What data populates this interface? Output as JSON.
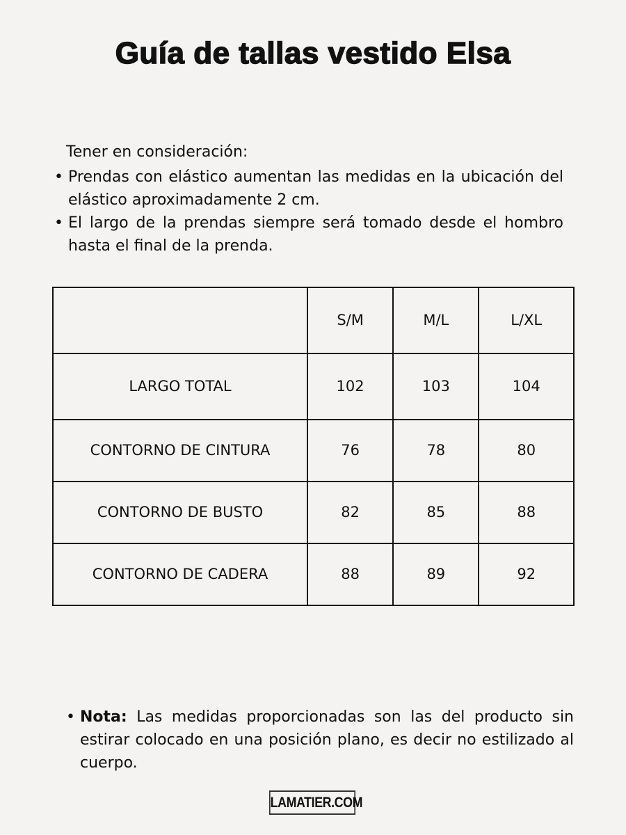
{
  "title": "Guía de tallas vestido Elsa",
  "intro": "Tener en consideración:",
  "bullets": [
    "Prendas con elástico aumentan las medidas en la ubicación del elástico aproximadamente 2 cm.",
    "El largo de la prendas siempre será tomado desde el hombro hasta el final de la prenda."
  ],
  "table": {
    "headers": [
      "",
      "S/M",
      "M/L",
      "L/XL"
    ],
    "rows": [
      {
        "label": "LARGO TOTAL",
        "values": [
          "102",
          "103",
          "104"
        ]
      },
      {
        "label": "CONTORNO DE CINTURA",
        "values": [
          "76",
          "78",
          "80"
        ]
      },
      {
        "label": "CONTORNO DE BUSTO",
        "values": [
          "82",
          "85",
          "88"
        ]
      },
      {
        "label": "CONTORNO DE CADERA",
        "values": [
          "88",
          "89",
          "92"
        ]
      }
    ]
  },
  "note": {
    "label": "Nota:",
    "text": " Las medidas proporcionadas son las del producto sin estirar colocado en una posición plano, es decir no estilizado al cuerpo."
  },
  "logo": "LAMATIER.COM"
}
